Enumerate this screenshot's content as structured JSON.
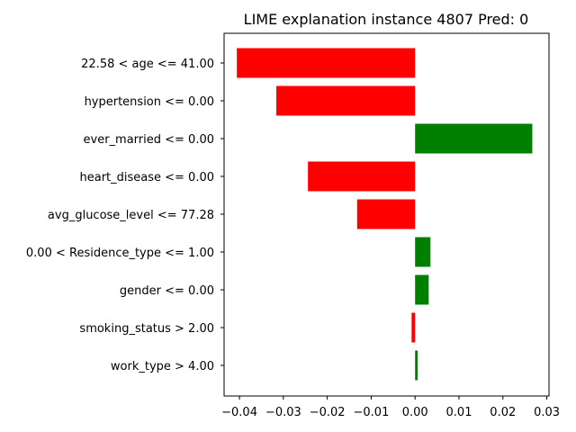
{
  "chart_data": {
    "type": "bar",
    "orientation": "horizontal",
    "title": "LIME explanation instance 4807 Pred: 0",
    "xlabel": "",
    "ylabel": "",
    "xlim": [
      -0.0435,
      0.0305
    ],
    "xticks": [
      -0.04,
      -0.03,
      -0.02,
      -0.01,
      0.0,
      0.01,
      0.02,
      0.03
    ],
    "xtick_labels": [
      "−0.04",
      "−0.03",
      "−0.02",
      "−0.01",
      "0.00",
      "0.01",
      "0.02",
      "0.03"
    ],
    "grid": false,
    "legend": "none",
    "positive_color": "#008000",
    "negative_color": "#ff0000",
    "categories": [
      "22.58 < age <= 41.00",
      "hypertension <= 0.00",
      "ever_married <= 0.00",
      "heart_disease <= 0.00",
      "avg_glucose_level <= 77.28",
      "0.00 < Residence_type <= 1.00",
      "gender <= 0.00",
      "smoking_status > 2.00",
      "work_type > 4.00"
    ],
    "values": [
      -0.0406,
      -0.0316,
      0.0267,
      -0.0244,
      -0.0132,
      0.0035,
      0.0031,
      -0.0008,
      0.0006
    ]
  }
}
